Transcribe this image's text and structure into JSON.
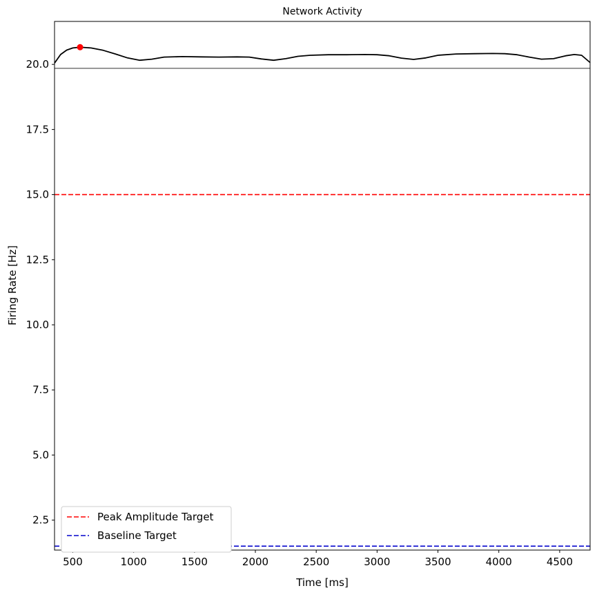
{
  "chart_data": {
    "type": "line",
    "title": "Network Activity",
    "xlabel": "Time [ms]",
    "ylabel": "Firing Rate [Hz]",
    "xlim": [
      350,
      4750
    ],
    "ylim": [
      1.35,
      21.65
    ],
    "xticks": [
      500,
      1000,
      1500,
      2000,
      2500,
      3000,
      3500,
      4000,
      4500
    ],
    "yticks": [
      2.5,
      5.0,
      7.5,
      10.0,
      12.5,
      15.0,
      17.5,
      20.0
    ],
    "grid": false,
    "series": [
      {
        "color": "#000000",
        "style": "solid",
        "x": [
          350,
          400,
          450,
          500,
          560,
          650,
          750,
          850,
          950,
          1050,
          1150,
          1250,
          1400,
          1550,
          1700,
          1850,
          1950,
          2050,
          2150,
          2250,
          2350,
          2450,
          2600,
          2750,
          2900,
          3000,
          3100,
          3200,
          3300,
          3400,
          3500,
          3650,
          3800,
          3950,
          4050,
          4150,
          4250,
          4350,
          4450,
          4550,
          4620,
          4680,
          4750
        ],
        "y": [
          20.05,
          20.38,
          20.55,
          20.63,
          20.66,
          20.63,
          20.54,
          20.4,
          20.25,
          20.16,
          20.2,
          20.28,
          20.3,
          20.29,
          20.28,
          20.29,
          20.28,
          20.21,
          20.16,
          20.22,
          20.31,
          20.35,
          20.37,
          20.37,
          20.38,
          20.37,
          20.33,
          20.24,
          20.19,
          20.25,
          20.35,
          20.4,
          20.41,
          20.42,
          20.41,
          20.37,
          20.28,
          20.2,
          20.22,
          20.33,
          20.38,
          20.35,
          20.07
        ]
      },
      {
        "color": "#808080",
        "style": "solid",
        "hline": 19.85
      },
      {
        "name": "Peak Amplitude Target",
        "color": "#ff0000",
        "style": "dashed",
        "hline": 15.0
      },
      {
        "name": "Baseline Target",
        "color": "#0000cc",
        "style": "dashed",
        "hline": 1.5
      }
    ],
    "peak_marker": {
      "x": 560,
      "y": 20.66,
      "color": "#ff0000"
    },
    "legend": {
      "placement": "lower-left",
      "entries": [
        "Peak Amplitude Target",
        "Baseline Target"
      ]
    }
  }
}
